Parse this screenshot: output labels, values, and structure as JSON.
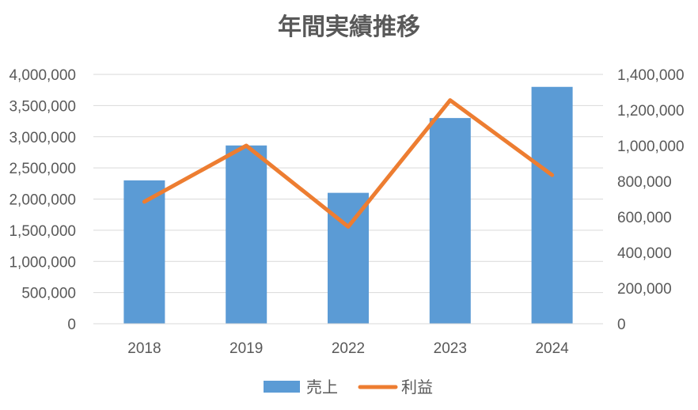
{
  "chart_data": {
    "type": "bar",
    "title": "年間実績推移",
    "categories": [
      "2018",
      "2019",
      "2022",
      "2023",
      "2024"
    ],
    "series": [
      {
        "name": "売上",
        "type": "bar",
        "axis": "left",
        "color": "#5B9BD5",
        "values": [
          2300000,
          2860000,
          2100000,
          3300000,
          3800000
        ]
      },
      {
        "name": "利益",
        "type": "line",
        "axis": "right",
        "color": "#ED7D31",
        "values": [
          685000,
          1000000,
          545000,
          1255000,
          835000
        ]
      }
    ],
    "y_left": {
      "ylim": [
        0,
        4000000
      ],
      "ticks": [
        "0",
        "500,000",
        "1,000,000",
        "1,500,000",
        "2,000,000",
        "2,500,000",
        "3,000,000",
        "3,500,000",
        "4,000,000"
      ]
    },
    "y_right": {
      "ylim": [
        0,
        1400000
      ],
      "ticks": [
        "0",
        "200,000",
        "400,000",
        "600,000",
        "800,000",
        "1,000,000",
        "1,200,000",
        "1,400,000"
      ]
    },
    "grid": true,
    "legend": "bottom"
  }
}
